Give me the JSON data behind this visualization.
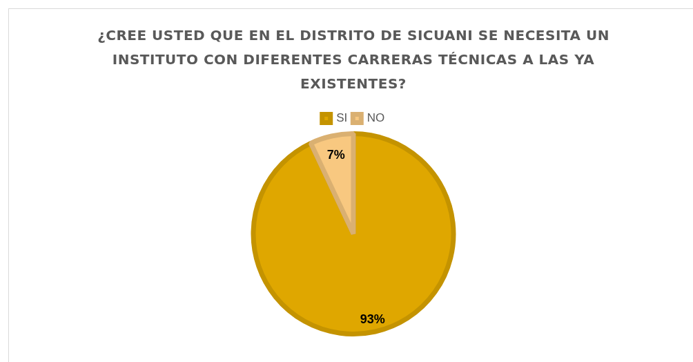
{
  "chart_data": {
    "type": "pie",
    "title": "¿CREE USTED QUE EN EL DISTRITO DE SICUANI SE NECESITA UN INSTITUTO CON DIFERENTES CARRERAS TÉCNICAS A LAS YA EXISTENTES?",
    "categories": [
      "SI",
      "NO"
    ],
    "values": [
      93,
      7
    ],
    "colors": [
      "#dfa700",
      "#f8c880"
    ],
    "value_labels": [
      "93%",
      "7%"
    ],
    "legend": "top"
  }
}
